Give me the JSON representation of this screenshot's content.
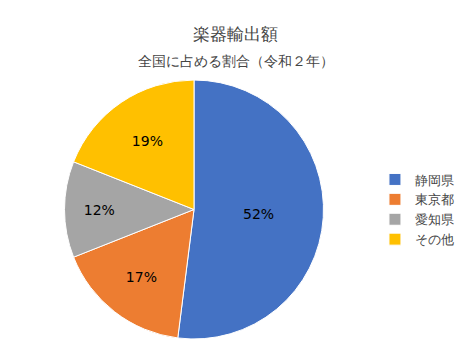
{
  "chart_data": {
    "type": "pie",
    "title": "楽器輸出額",
    "subtitle": "全国に占める割合（令和２年）",
    "categories": [
      "静岡県",
      "東京都",
      "愛知県",
      "その他"
    ],
    "values": [
      52,
      17,
      12,
      19
    ],
    "value_labels": [
      "52%",
      "17%",
      "12%",
      "19%"
    ],
    "colors": [
      "#4472C4",
      "#ED7D31",
      "#A5A5A5",
      "#FFC000"
    ],
    "data_labels": true,
    "legend": "right"
  }
}
